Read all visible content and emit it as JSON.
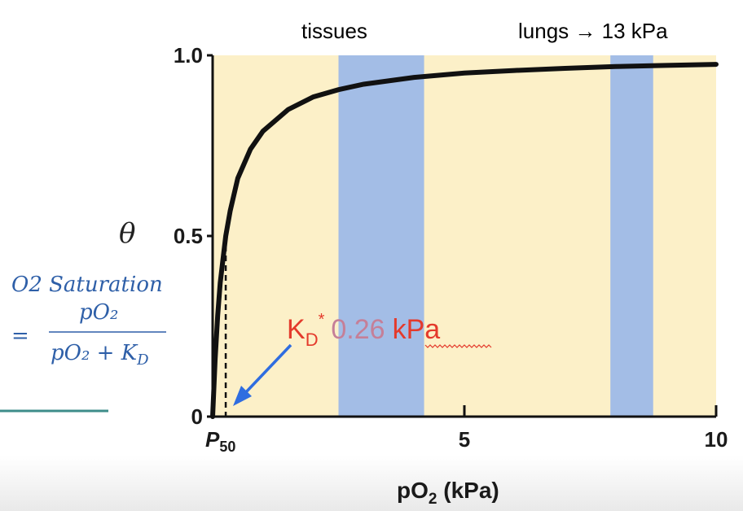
{
  "chart_data": {
    "type": "line",
    "title": "",
    "xlabel": "pO2 (kPa)",
    "ylabel": "θ",
    "xlim": [
      0,
      10
    ],
    "ylim": [
      0,
      1
    ],
    "x_ticks": [
      {
        "value": 0.26,
        "label": "P50"
      },
      {
        "value": 5,
        "label": "5"
      },
      {
        "value": 10,
        "label": "10"
      }
    ],
    "y_ticks": [
      {
        "value": 0,
        "label": "0"
      },
      {
        "value": 0.5,
        "label": "0.5"
      },
      {
        "value": 1.0,
        "label": "1.0"
      }
    ],
    "kd": 0.26,
    "series": [
      {
        "x": [
          0,
          0.05,
          0.1,
          0.15,
          0.2,
          0.26,
          0.35,
          0.5,
          0.75,
          1,
          1.5,
          2,
          2.5,
          3,
          4,
          5,
          6,
          7,
          8,
          9,
          10
        ],
        "y": [
          0,
          0.16,
          0.28,
          0.37,
          0.43,
          0.5,
          0.57,
          0.66,
          0.74,
          0.79,
          0.85,
          0.885,
          0.905,
          0.92,
          0.939,
          0.951,
          0.958,
          0.964,
          0.969,
          0.972,
          0.975
        ]
      }
    ],
    "regions": [
      {
        "label": "tissues",
        "x_range": [
          2.5,
          4.2
        ]
      },
      {
        "label": "lungs → 13 kPa",
        "x_range": [
          7.9,
          8.75
        ]
      }
    ],
    "colors": {
      "plot_background": "#fcf0c8",
      "region_fill": "#a3bde6",
      "curve": "#111111",
      "annotation": "#e43a2c",
      "arrow": "#2f6de0",
      "formula": "#2e5fa8",
      "divider": "#3e8d8a"
    }
  },
  "annotations": {
    "kd_letter": "K",
    "kd_sub": "D",
    "kd_star": "*",
    "kd_value": "0.26",
    "kd_unit": "kPa"
  },
  "formula": {
    "label": "O2 Saturation",
    "eq": "=",
    "numerator": "pO₂",
    "denominator": "pO₂ + K",
    "denominator_sub": "D"
  }
}
